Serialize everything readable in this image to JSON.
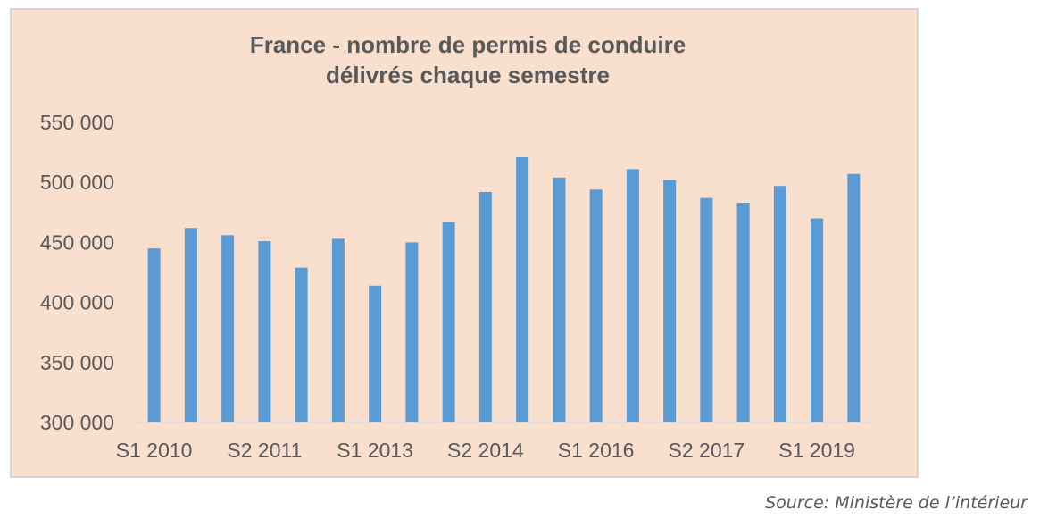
{
  "chart_data": {
    "type": "bar",
    "title": "France - nombre de permis de conduire",
    "subtitle": "délivrés chaque semestre",
    "xlabel": "",
    "ylabel": "",
    "ylim": [
      300000,
      550000
    ],
    "yticks": [
      300000,
      350000,
      400000,
      450000,
      500000,
      550000
    ],
    "ytick_labels": [
      "300 000",
      "350 000",
      "400 000",
      "450 000",
      "500 000",
      "550 000"
    ],
    "categories": [
      "S1 2010",
      "S2 2010",
      "S1 2011",
      "S2 2011",
      "S1 2012",
      "S2 2012",
      "S1 2013",
      "S2 2013",
      "S1 2014",
      "S2 2014",
      "S1 2015",
      "S2 2015",
      "S1 2016",
      "S2 2016",
      "S1 2017",
      "S2 2017",
      "S1 2018",
      "S2 2018",
      "S1 2019",
      "S2 2019"
    ],
    "shown_category_labels": [
      "S1 2010",
      "S2 2011",
      "S1 2013",
      "S2 2014",
      "S1 2016",
      "S2 2017",
      "S1 2019"
    ],
    "values": [
      445000,
      462000,
      456000,
      451000,
      429000,
      453000,
      414000,
      450000,
      467000,
      492000,
      521000,
      504000,
      494000,
      511000,
      502000,
      487000,
      483000,
      497000,
      470000,
      507000
    ],
    "grid": false,
    "legend": "none",
    "colors": {
      "bar": "#5b9bd5",
      "background": "#f9dfce",
      "text": "#595959",
      "axis": "#d9d9d9"
    }
  },
  "source": "Source: Ministère de l’intérieur"
}
